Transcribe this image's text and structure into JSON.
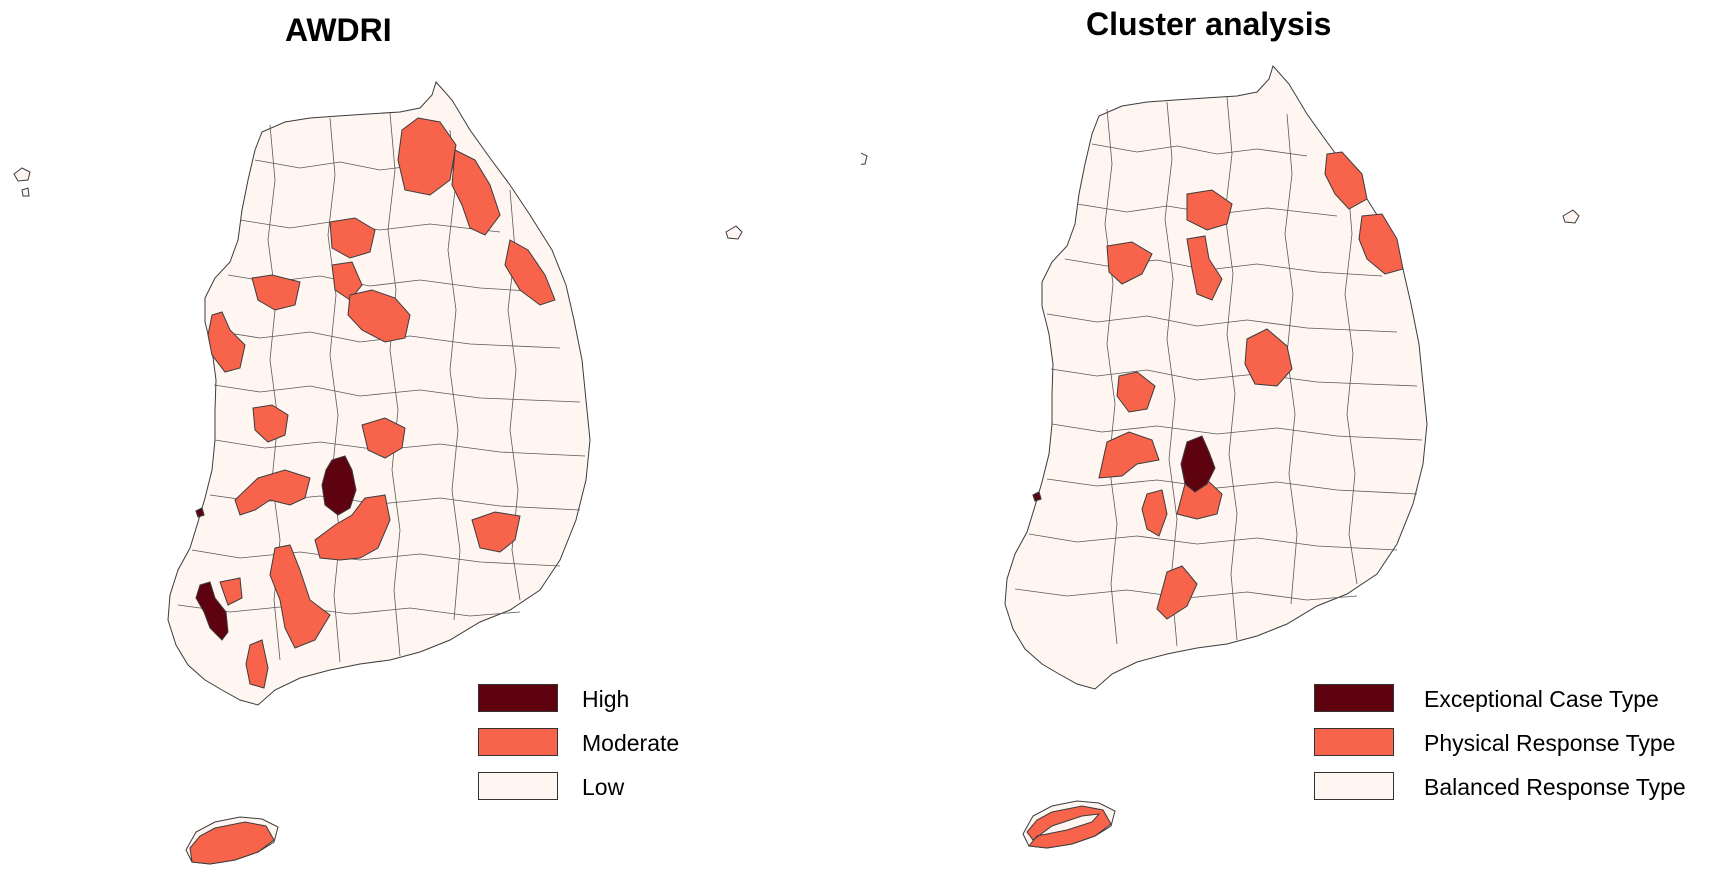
{
  "colors": {
    "high": "#5e0210",
    "moderate": "#f8644b",
    "low": "#fff5f1",
    "border": "#3c3c3c"
  },
  "maps": [
    {
      "title": "AWDRI",
      "legend": [
        {
          "label": "High",
          "color": "#5e0210"
        },
        {
          "label": "Moderate",
          "color": "#f8644b"
        },
        {
          "label": "Low",
          "color": "#fff5f1"
        }
      ]
    },
    {
      "title": "Cluster analysis",
      "legend": [
        {
          "label": "Exceptional Case Type",
          "color": "#5e0210"
        },
        {
          "label": "Physical Response Type",
          "color": "#f8644b"
        },
        {
          "label": "Balanced Response Type",
          "color": "#fff5f1"
        }
      ]
    }
  ]
}
